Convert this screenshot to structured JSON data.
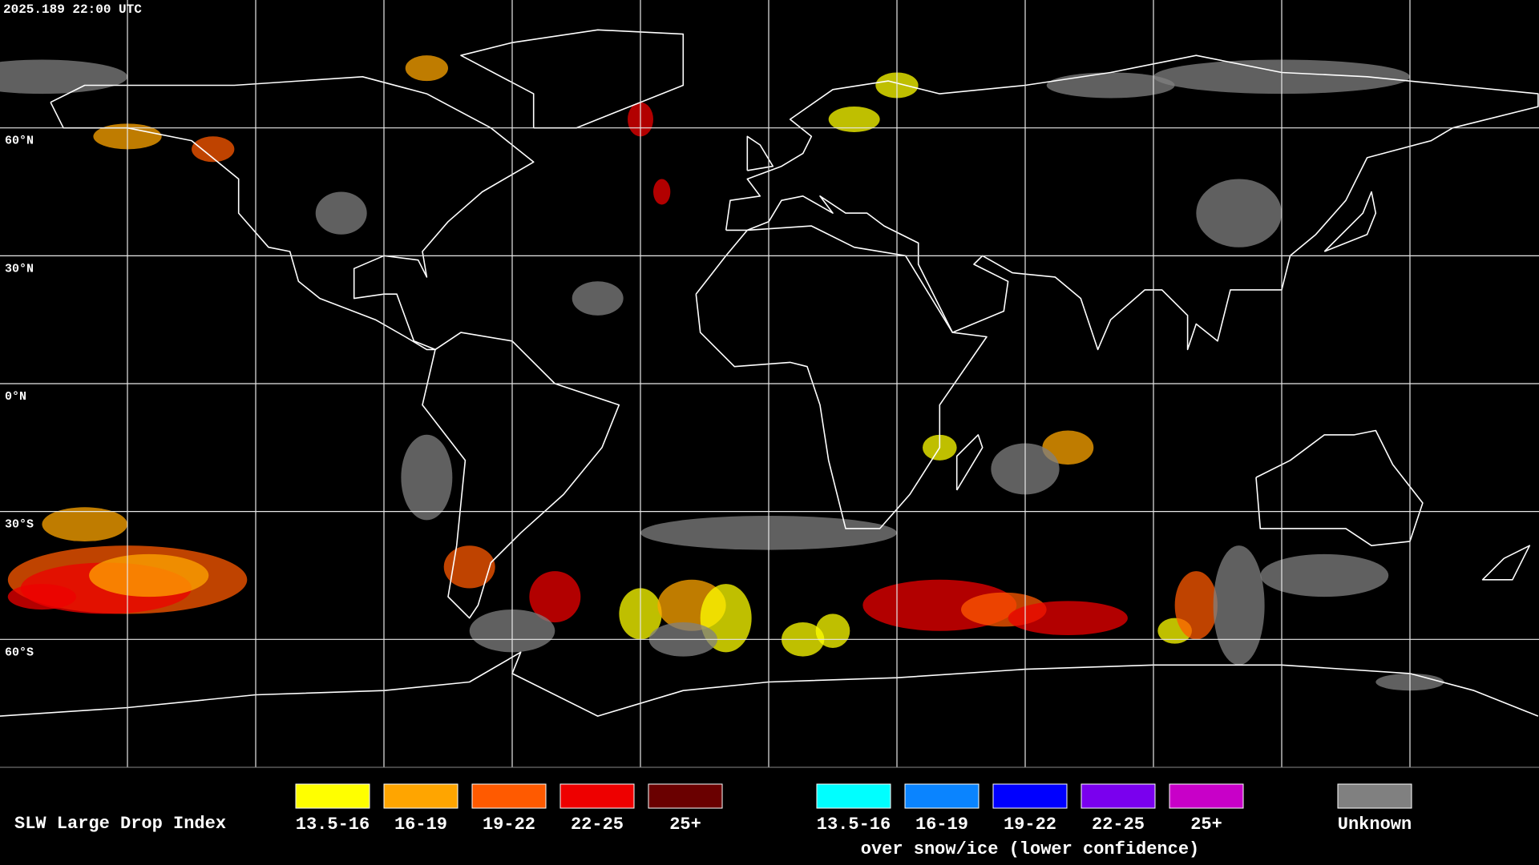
{
  "header": {
    "timestamp": "2025.189 22:00 UTC"
  },
  "map": {
    "lat_labels": [
      "60°N",
      "30°N",
      "0°N",
      "30°S",
      "60°S"
    ]
  },
  "legend": {
    "title": "SLW Large Drop Index",
    "groups": [
      {
        "items": [
          {
            "label": "13.5-16",
            "color": "#ffff00"
          },
          {
            "label": "16-19",
            "color": "#ffa500"
          },
          {
            "label": "19-22",
            "color": "#ff5a00"
          },
          {
            "label": "22-25",
            "color": "#ee0000"
          },
          {
            "label": "25+",
            "color": "#6a0000"
          }
        ]
      },
      {
        "items": [
          {
            "label": "13.5-16",
            "color": "#00ffff"
          },
          {
            "label": "16-19",
            "color": "#0a84ff"
          },
          {
            "label": "19-22",
            "color": "#0000ff"
          },
          {
            "label": "22-25",
            "color": "#7a00ee"
          },
          {
            "label": "25+",
            "color": "#c800c8"
          }
        ],
        "caption": "over snow/ice (lower confidence)"
      },
      {
        "items": [
          {
            "label": "Unknown",
            "color": "#808080"
          }
        ]
      }
    ]
  }
}
